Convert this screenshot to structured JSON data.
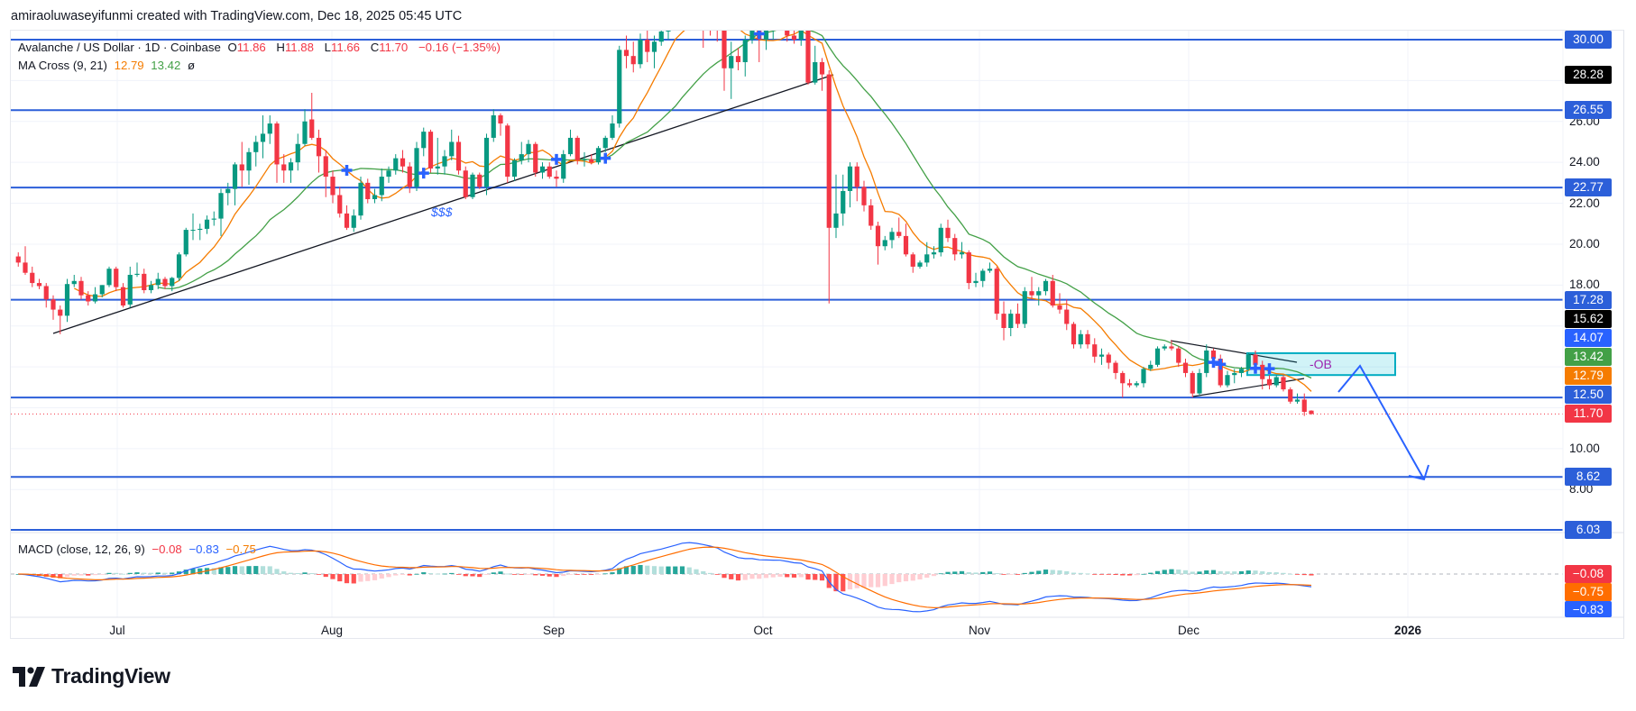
{
  "header": {
    "credit": "amiraoluwaseyifunmi created with TradingView.com, Dec 18, 2025 05:45 UTC"
  },
  "legend": {
    "symbol": "Avalanche / US Dollar · 1D · Coinbase",
    "o_label": "O",
    "o": "11.86",
    "h_label": "H",
    "h": "11.88",
    "l_label": "L",
    "l": "11.66",
    "c_label": "C",
    "c": "11.70",
    "change": "−0.16 (−1.35%)",
    "ma_title": "MA Cross (9, 21)",
    "ma_fast": "12.79",
    "ma_slow": "13.42",
    "ma_symbol": "ø"
  },
  "macd_legend": {
    "title": "MACD (close, 12, 26, 9)",
    "hist": "−0.08",
    "macd": "−0.83",
    "signal": "−0.75"
  },
  "branding": {
    "logo_text": "TradingView",
    "logo_mark": "17"
  },
  "chart_data": {
    "type": "candlestick",
    "symbol": "AVAX/USD",
    "interval": "1D",
    "ylim": [
      5.6,
      30.6
    ],
    "grid": true,
    "colors": {
      "up": "#089981",
      "down": "#f23645",
      "level": "#2c5fd9",
      "ma_fast": "#f57c00",
      "ma_slow": "#43a047",
      "macd": "#2962ff",
      "signal": "#ff6d00",
      "last_price": "#f23645"
    },
    "indicators": {
      "ma_fast_period": 9,
      "ma_slow_period": 21,
      "macd": [
        12,
        26,
        9
      ]
    },
    "price_ticks": [
      "26.00",
      "24.00",
      "22.00",
      "20.00",
      "18.00",
      "10.00",
      "8.00"
    ],
    "levels": [
      30.0,
      26.55,
      22.77,
      17.28,
      12.5,
      8.62,
      6.03
    ],
    "last_price": 11.7,
    "price_labels": [
      {
        "text": "30.00",
        "value": 30.0,
        "color": "#2c5fd9"
      },
      {
        "text": "28.28",
        "value": 28.28,
        "color": "#000000"
      },
      {
        "text": "26.55",
        "value": 26.55,
        "color": "#2c5fd9"
      },
      {
        "text": "22.77",
        "value": 22.77,
        "color": "#2c5fd9"
      },
      {
        "text": "17.28",
        "value": 17.28,
        "color": "#2c5fd9"
      },
      {
        "text": "15.62",
        "value": 15.62,
        "color": "#000000"
      },
      {
        "text": "14.07",
        "value": 14.07,
        "color": "#2962ff"
      },
      {
        "text": "13.42",
        "value": 13.42,
        "color": "#43a047"
      },
      {
        "text": "12.79",
        "value": 12.79,
        "color": "#f57c00"
      },
      {
        "text": "12.50",
        "value": 12.5,
        "color": "#2c5fd9"
      },
      {
        "text": "11.70",
        "value": 11.7,
        "color": "#f23645"
      },
      {
        "text": "8.62",
        "value": 8.62,
        "color": "#2c5fd9"
      },
      {
        "text": "6.03",
        "value": 6.03,
        "color": "#2c5fd9"
      }
    ],
    "macd_labels": [
      {
        "text": "−0.08",
        "color": "#f23645"
      },
      {
        "text": "−0.75",
        "color": "#ff6d00"
      },
      {
        "text": "−0.83",
        "color": "#2962ff"
      }
    ],
    "time_labels": [
      "Jul",
      "Aug",
      "Sep",
      "Oct",
      "Nov",
      "Dec",
      "2026"
    ],
    "annotations": {
      "liquidity_text": "$$$",
      "order_block_text": "-OB",
      "order_block_range": [
        13.6,
        14.67
      ],
      "projection_target": 8.62
    },
    "candles": [
      [
        19.4,
        19.6,
        18.9,
        19.1
      ],
      [
        19.1,
        19.9,
        18.5,
        18.6
      ],
      [
        18.6,
        18.9,
        17.9,
        18.1
      ],
      [
        18.1,
        18.3,
        17.8,
        17.95
      ],
      [
        17.95,
        18.1,
        16.9,
        17.3
      ],
      [
        17.3,
        17.5,
        16.3,
        16.8
      ],
      [
        16.8,
        17.0,
        15.6,
        16.5
      ],
      [
        16.5,
        18.3,
        16.2,
        18.05
      ],
      [
        18.05,
        18.5,
        17.9,
        18.2
      ],
      [
        18.2,
        18.4,
        17.3,
        17.5
      ],
      [
        17.5,
        17.7,
        17.0,
        17.2
      ],
      [
        17.2,
        17.9,
        17.1,
        17.55
      ],
      [
        17.55,
        18.0,
        17.4,
        18.0
      ],
      [
        18.0,
        18.9,
        17.9,
        18.8
      ],
      [
        18.8,
        18.9,
        17.7,
        17.9
      ],
      [
        17.9,
        18.1,
        16.9,
        17.0
      ],
      [
        17.05,
        18.9,
        16.9,
        18.5
      ],
      [
        18.5,
        19.1,
        18.4,
        18.55
      ],
      [
        18.55,
        18.8,
        17.6,
        17.75
      ],
      [
        17.75,
        18.2,
        17.6,
        18.0
      ],
      [
        18.0,
        18.6,
        17.8,
        18.3
      ],
      [
        18.3,
        18.4,
        17.8,
        17.95
      ],
      [
        17.95,
        18.4,
        17.7,
        18.35
      ],
      [
        18.35,
        19.6,
        18.2,
        19.5
      ],
      [
        19.5,
        20.8,
        19.4,
        20.7
      ],
      [
        20.7,
        21.5,
        20.2,
        20.7
      ],
      [
        20.7,
        21.0,
        20.2,
        20.75
      ],
      [
        20.75,
        21.4,
        20.5,
        21.2
      ],
      [
        21.2,
        21.6,
        20.9,
        21.25
      ],
      [
        21.25,
        22.7,
        20.4,
        22.5
      ],
      [
        22.5,
        23.0,
        21.9,
        22.7
      ],
      [
        22.7,
        24.0,
        21.9,
        23.9
      ],
      [
        23.9,
        25.0,
        22.8,
        23.6
      ],
      [
        23.6,
        24.7,
        22.9,
        24.5
      ],
      [
        24.5,
        25.3,
        23.8,
        25.0
      ],
      [
        25.0,
        26.3,
        24.2,
        25.4
      ],
      [
        25.4,
        26.3,
        24.9,
        25.9
      ],
      [
        25.9,
        26.0,
        23.0,
        23.9
      ],
      [
        23.9,
        24.4,
        23.0,
        23.6
      ],
      [
        23.6,
        24.2,
        23.0,
        24.0
      ],
      [
        24.0,
        25.4,
        23.6,
        24.9
      ],
      [
        24.9,
        26.6,
        24.8,
        26.0
      ],
      [
        26.1,
        27.4,
        25.1,
        25.2
      ],
      [
        25.2,
        25.6,
        23.5,
        24.3
      ],
      [
        24.3,
        24.6,
        22.3,
        23.3
      ],
      [
        23.3,
        23.6,
        22.0,
        22.4
      ],
      [
        22.4,
        22.8,
        21.3,
        21.5
      ],
      [
        21.5,
        21.9,
        20.7,
        20.8
      ],
      [
        20.8,
        21.7,
        20.6,
        21.4
      ],
      [
        21.4,
        23.3,
        21.2,
        23.0
      ],
      [
        23.0,
        23.2,
        22.0,
        22.2
      ],
      [
        22.2,
        22.7,
        22.0,
        22.4
      ],
      [
        22.4,
        23.7,
        22.1,
        23.3
      ],
      [
        23.3,
        23.8,
        23.0,
        23.6
      ],
      [
        23.6,
        24.4,
        23.4,
        24.2
      ],
      [
        24.2,
        24.6,
        23.5,
        23.8
      ],
      [
        23.8,
        24.0,
        22.5,
        22.8
      ],
      [
        22.8,
        25.0,
        22.6,
        24.7
      ],
      [
        24.7,
        25.7,
        24.3,
        25.5
      ],
      [
        25.5,
        25.6,
        23.5,
        23.7
      ],
      [
        23.7,
        25.2,
        23.4,
        23.8
      ],
      [
        23.8,
        24.6,
        23.4,
        24.3
      ],
      [
        24.3,
        25.6,
        24.1,
        25.0
      ],
      [
        25.0,
        25.3,
        23.4,
        23.6
      ],
      [
        23.6,
        23.8,
        22.2,
        22.3
      ],
      [
        22.3,
        23.5,
        22.2,
        23.4
      ],
      [
        23.4,
        23.5,
        22.7,
        22.8
      ],
      [
        22.8,
        25.4,
        22.4,
        25.2
      ],
      [
        25.2,
        26.6,
        25.0,
        26.3
      ],
      [
        26.3,
        26.4,
        25.3,
        25.9
      ],
      [
        25.8,
        25.9,
        23.0,
        23.3
      ],
      [
        23.3,
        24.2,
        23.1,
        24.1
      ],
      [
        24.1,
        25.0,
        23.9,
        24.4
      ],
      [
        24.4,
        25.1,
        24.0,
        24.9
      ],
      [
        24.9,
        25.0,
        23.3,
        23.5
      ],
      [
        23.5,
        24.0,
        23.2,
        23.8
      ],
      [
        23.8,
        24.0,
        23.2,
        23.3
      ],
      [
        23.3,
        23.6,
        22.8,
        23.2
      ],
      [
        23.2,
        24.6,
        23.0,
        24.4
      ],
      [
        24.4,
        25.6,
        24.3,
        25.2
      ],
      [
        25.2,
        25.3,
        23.9,
        24.1
      ],
      [
        24.1,
        24.5,
        23.8,
        24.15
      ],
      [
        24.15,
        24.4,
        23.9,
        24.0
      ],
      [
        24.0,
        24.8,
        23.9,
        24.7
      ],
      [
        24.7,
        25.3,
        24.5,
        25.2
      ],
      [
        25.2,
        26.3,
        25.1,
        25.9
      ],
      [
        25.9,
        29.7,
        25.7,
        29.5
      ],
      [
        29.5,
        30.2,
        28.6,
        29.2
      ],
      [
        29.2,
        29.9,
        28.4,
        28.8
      ],
      [
        28.8,
        30.3,
        28.6,
        30.0
      ],
      [
        30.0,
        30.5,
        28.9,
        29.4
      ],
      [
        29.4,
        30.2,
        28.6,
        29.9
      ],
      [
        29.9,
        30.6,
        29.7,
        30.4
      ],
      [
        30.4,
        31.5,
        30.0,
        31.2
      ],
      [
        31.2,
        32.4,
        30.8,
        31.8
      ],
      [
        31.8,
        33.0,
        31.2,
        32.5
      ],
      [
        32.5,
        33.5,
        31.8,
        32.0
      ],
      [
        32.0,
        32.8,
        30.9,
        31.3
      ],
      [
        31.3,
        31.8,
        29.6,
        31.0
      ],
      [
        31.0,
        31.6,
        30.2,
        30.9
      ],
      [
        30.9,
        31.4,
        29.9,
        30.6
      ],
      [
        30.6,
        31.0,
        27.5,
        28.6
      ],
      [
        28.6,
        29.9,
        27.1,
        29.2
      ],
      [
        29.2,
        29.6,
        28.5,
        28.9
      ],
      [
        28.9,
        30.2,
        28.2,
        30.0
      ],
      [
        30.0,
        31.2,
        29.8,
        30.8
      ],
      [
        30.8,
        31.1,
        28.9,
        30.0
      ],
      [
        30.0,
        31.0,
        29.5,
        30.7
      ],
      [
        30.7,
        31.3,
        30.0,
        30.8
      ],
      [
        30.8,
        31.5,
        30.5,
        31.0
      ],
      [
        31.0,
        31.3,
        29.9,
        30.2
      ],
      [
        30.2,
        30.8,
        29.8,
        30.0
      ],
      [
        30.0,
        30.9,
        29.7,
        30.6
      ],
      [
        30.6,
        30.8,
        27.8,
        27.9
      ],
      [
        27.9,
        29.7,
        27.8,
        28.9
      ],
      [
        28.9,
        29.1,
        27.5,
        28.3
      ],
      [
        28.3,
        28.5,
        17.1,
        20.8
      ],
      [
        20.8,
        23.4,
        20.3,
        21.5
      ],
      [
        21.5,
        23.4,
        20.9,
        22.6
      ],
      [
        22.6,
        24.0,
        21.8,
        23.8
      ],
      [
        23.8,
        24.0,
        22.1,
        22.8
      ],
      [
        22.8,
        23.1,
        21.6,
        21.9
      ],
      [
        21.9,
        22.2,
        20.7,
        20.9
      ],
      [
        20.9,
        21.1,
        19.0,
        19.9
      ],
      [
        19.9,
        20.4,
        19.7,
        20.2
      ],
      [
        20.2,
        20.8,
        19.8,
        20.6
      ],
      [
        20.6,
        21.3,
        20.3,
        20.4
      ],
      [
        20.4,
        21.0,
        19.4,
        19.5
      ],
      [
        19.5,
        19.6,
        18.6,
        18.9
      ],
      [
        18.9,
        19.2,
        18.8,
        19.1
      ],
      [
        19.1,
        20.1,
        18.9,
        19.5
      ],
      [
        19.5,
        19.9,
        19.3,
        19.6
      ],
      [
        19.6,
        21.0,
        19.4,
        20.8
      ],
      [
        20.8,
        21.2,
        20.1,
        20.3
      ],
      [
        20.3,
        20.5,
        19.2,
        19.5
      ],
      [
        19.5,
        20.1,
        19.3,
        19.6
      ],
      [
        19.6,
        19.7,
        17.8,
        18.1
      ],
      [
        18.1,
        18.6,
        17.9,
        18.2
      ],
      [
        18.2,
        18.8,
        17.9,
        18.7
      ],
      [
        18.7,
        19.1,
        18.6,
        18.8
      ],
      [
        18.8,
        18.9,
        16.3,
        16.6
      ],
      [
        16.6,
        17.2,
        15.3,
        15.9
      ],
      [
        15.9,
        16.8,
        15.5,
        16.6
      ],
      [
        16.6,
        17.1,
        15.9,
        16.1
      ],
      [
        16.1,
        17.9,
        15.9,
        17.7
      ],
      [
        17.7,
        18.4,
        17.3,
        17.5
      ],
      [
        17.5,
        17.9,
        17.0,
        17.7
      ],
      [
        17.7,
        18.3,
        17.5,
        18.2
      ],
      [
        18.2,
        18.5,
        16.9,
        17.0
      ],
      [
        17.0,
        17.6,
        16.6,
        16.8
      ],
      [
        16.8,
        17.3,
        15.8,
        16.1
      ],
      [
        16.1,
        16.2,
        14.9,
        15.1
      ],
      [
        15.1,
        15.8,
        14.9,
        15.6
      ],
      [
        15.6,
        15.8,
        14.9,
        15.1
      ],
      [
        15.1,
        15.4,
        14.2,
        14.5
      ],
      [
        14.5,
        14.9,
        14.1,
        14.6
      ],
      [
        14.6,
        14.7,
        13.9,
        14.2
      ],
      [
        14.2,
        14.3,
        13.4,
        13.7
      ],
      [
        13.7,
        13.8,
        12.5,
        13.2
      ],
      [
        13.2,
        13.4,
        13.0,
        13.1
      ],
      [
        13.1,
        13.3,
        13.0,
        13.2
      ],
      [
        13.2,
        14.0,
        13.0,
        13.9
      ],
      [
        13.9,
        14.3,
        13.8,
        14.1
      ],
      [
        14.1,
        15.0,
        14.0,
        14.9
      ],
      [
        14.9,
        15.1,
        14.8,
        15.0
      ],
      [
        15.0,
        15.3,
        14.8,
        14.9
      ],
      [
        14.9,
        15.0,
        14.0,
        14.2
      ],
      [
        14.2,
        14.4,
        13.5,
        13.7
      ],
      [
        13.7,
        13.8,
        12.5,
        12.7
      ],
      [
        12.7,
        13.9,
        12.6,
        13.7
      ],
      [
        13.7,
        15.1,
        13.5,
        14.8
      ],
      [
        14.8,
        14.9,
        14.2,
        14.4
      ],
      [
        14.4,
        14.6,
        13.0,
        13.1
      ],
      [
        13.1,
        13.8,
        13.0,
        13.6
      ],
      [
        13.6,
        13.9,
        13.2,
        13.7
      ],
      [
        13.7,
        14.0,
        13.5,
        13.9
      ],
      [
        13.9,
        14.7,
        13.8,
        14.6
      ],
      [
        14.6,
        14.8,
        13.9,
        14.1
      ],
      [
        14.1,
        14.3,
        12.9,
        13.4
      ],
      [
        13.4,
        13.6,
        12.9,
        13.1
      ],
      [
        13.1,
        13.6,
        13.0,
        13.5
      ],
      [
        13.5,
        13.6,
        12.8,
        12.9
      ],
      [
        12.9,
        13.0,
        12.2,
        12.3
      ],
      [
        12.3,
        12.7,
        12.2,
        12.4
      ],
      [
        12.4,
        12.7,
        11.6,
        11.8
      ],
      [
        11.86,
        11.88,
        11.66,
        11.7
      ]
    ]
  }
}
